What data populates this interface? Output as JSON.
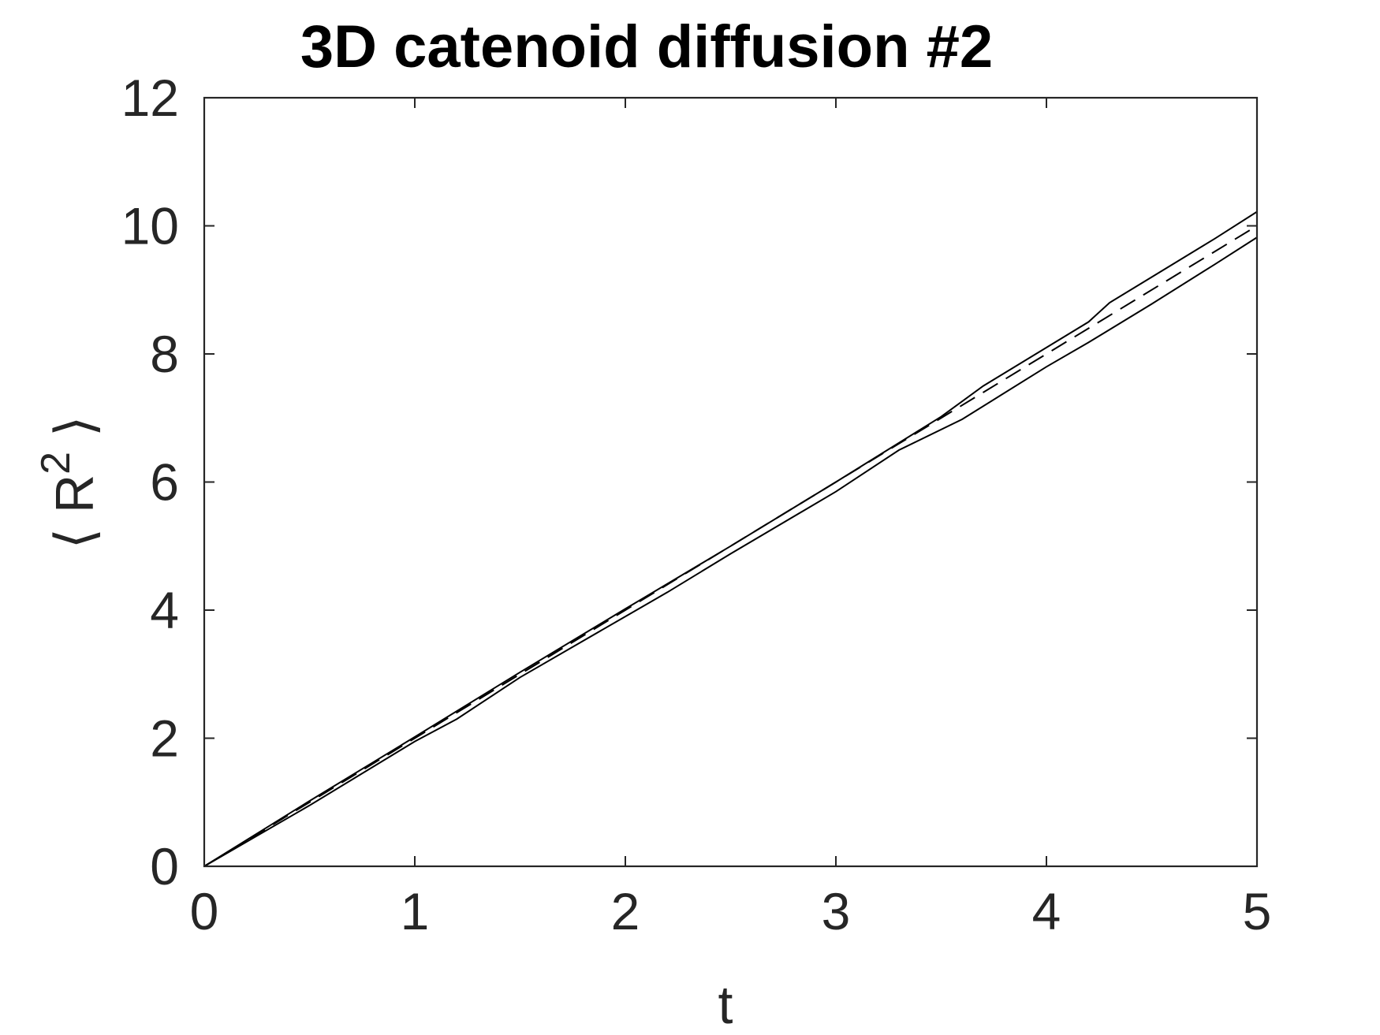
{
  "chart_data": {
    "type": "line",
    "title": "3D catenoid diffusion #2",
    "xlabel": "t",
    "ylabel": "⟨ R² ⟩",
    "ylabel_parts": {
      "open": "⟨",
      "base": "R",
      "sup": "2",
      "close": "⟩"
    },
    "xlim": [
      0,
      5
    ],
    "ylim": [
      0,
      12
    ],
    "xticks": [
      0,
      1,
      2,
      3,
      4,
      5
    ],
    "yticks": [
      0,
      2,
      4,
      6,
      8,
      10,
      12
    ],
    "grid": false,
    "line_color": "#000000",
    "series": [
      {
        "style": "dashed",
        "x": [
          0,
          1,
          2,
          3,
          4,
          5
        ],
        "y": [
          0,
          2,
          4,
          6,
          8,
          10
        ]
      },
      {
        "style": "solid",
        "x": [
          0,
          0.5,
          1,
          1.5,
          2,
          2.5,
          3,
          3.5,
          3.7,
          4,
          4.2,
          4.3,
          4.5,
          4.8,
          5
        ],
        "y": [
          0,
          1.02,
          2.02,
          3.03,
          4.02,
          5.0,
          6.0,
          7.02,
          7.5,
          8.1,
          8.5,
          8.8,
          9.2,
          9.8,
          10.22
        ]
      },
      {
        "style": "solid",
        "x": [
          0,
          0.5,
          1,
          1.2,
          1.5,
          2,
          2.2,
          2.5,
          3,
          3.3,
          3.6,
          4,
          4.2,
          4.5,
          4.8,
          5
        ],
        "y": [
          0,
          0.95,
          1.95,
          2.3,
          2.95,
          3.9,
          4.28,
          4.88,
          5.85,
          6.5,
          6.98,
          7.8,
          8.18,
          8.78,
          9.4,
          9.82
        ]
      }
    ]
  }
}
